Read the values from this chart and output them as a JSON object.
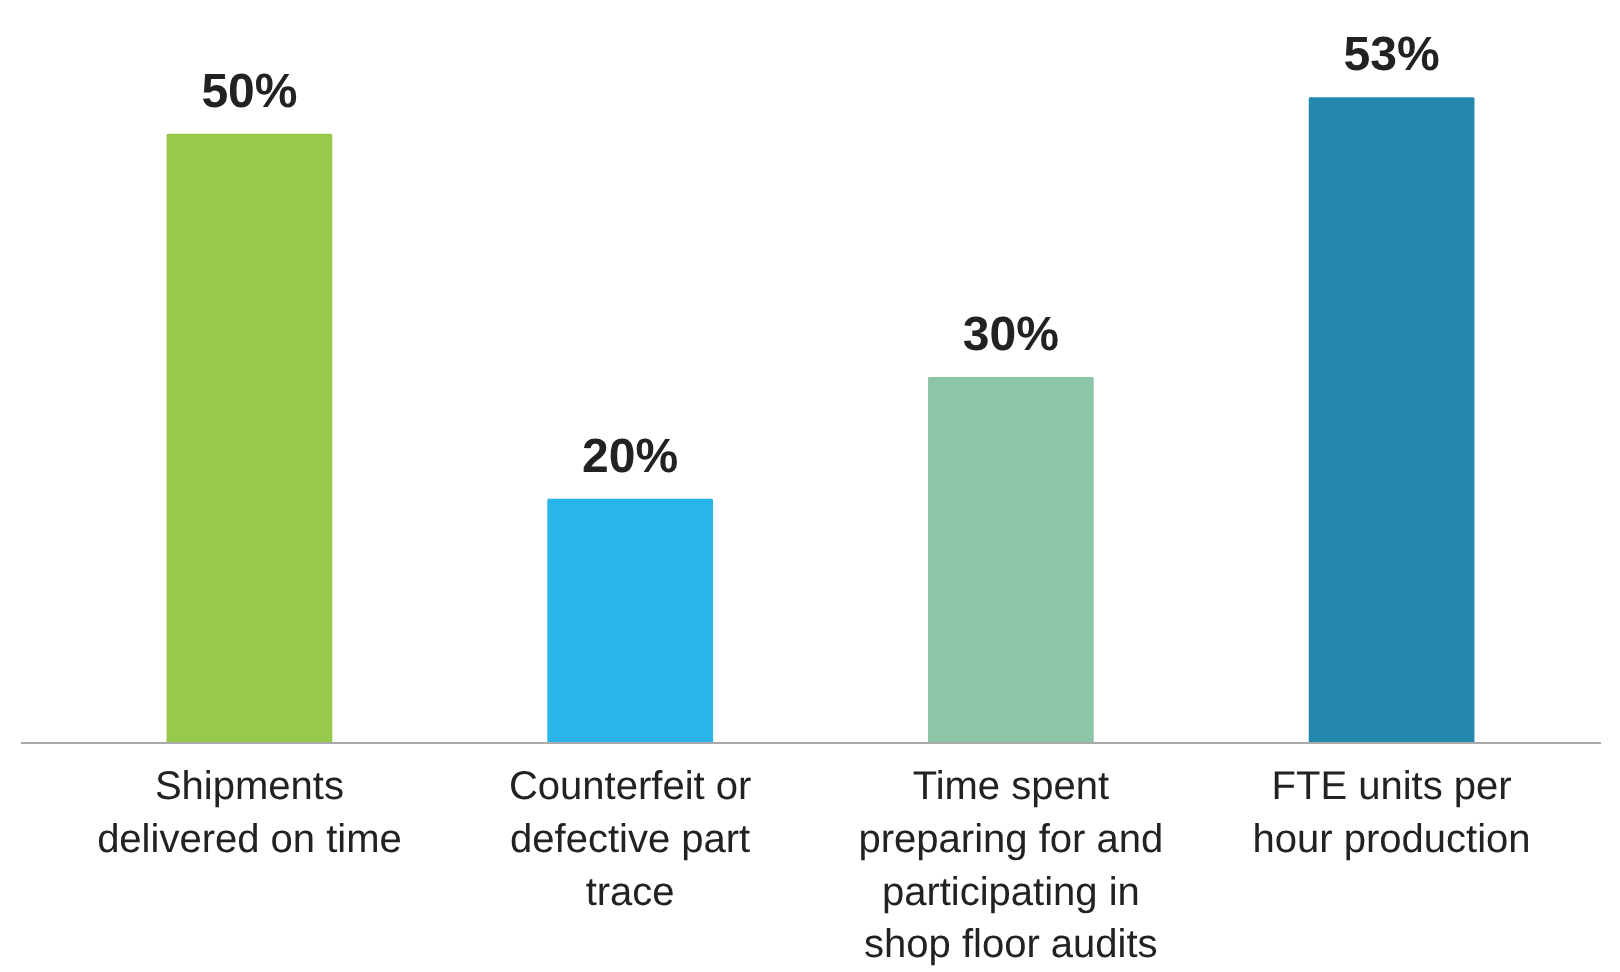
{
  "chart_data": {
    "type": "bar",
    "categories": [
      "Shipments delivered on time",
      "Counterfeit or defective part trace",
      "Time spent preparing for and participating in shop floor audits",
      "FTE units per hour production"
    ],
    "values": [
      50,
      20,
      30,
      53
    ],
    "colors": [
      "#97c94a",
      "#29b5e8",
      "#8dc5a9",
      "#2488ae"
    ],
    "value_labels": [
      "50%",
      "20%",
      "30%",
      "53%"
    ],
    "grid": false
  }
}
